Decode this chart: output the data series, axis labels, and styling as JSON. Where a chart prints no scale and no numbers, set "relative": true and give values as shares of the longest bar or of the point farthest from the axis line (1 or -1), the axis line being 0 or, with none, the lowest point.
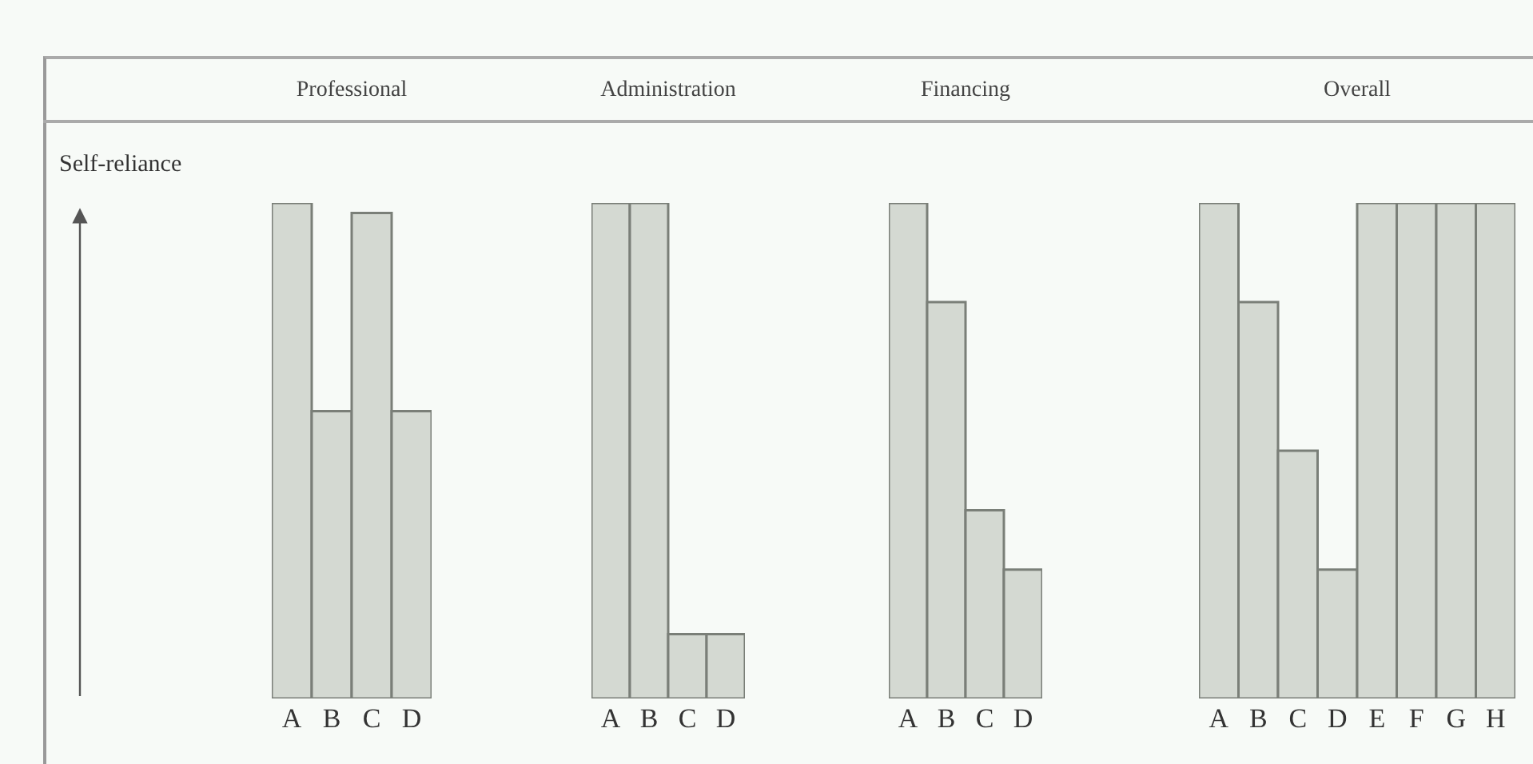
{
  "chart_data": [
    {
      "type": "bar",
      "title": "Professional",
      "ylabel": "Self-reliance",
      "relative": true,
      "categories": [
        "A",
        "B",
        "C",
        "D"
      ],
      "values": [
        1,
        0.58,
        0.98,
        0.58
      ],
      "color": "#d4d9d2"
    },
    {
      "type": "bar",
      "title": "Administration",
      "relative": true,
      "categories": [
        "A",
        "B",
        "C",
        "D"
      ],
      "values": [
        1,
        1,
        0.13,
        0.13
      ],
      "color": "#d4d9d2"
    },
    {
      "type": "bar",
      "title": "Financing",
      "relative": true,
      "categories": [
        "A",
        "B",
        "C",
        "D"
      ],
      "values": [
        1,
        0.8,
        0.38,
        0.26
      ],
      "color": "#d4d9d2"
    },
    {
      "type": "bar",
      "title": "Overall",
      "relative": true,
      "categories": [
        "A",
        "B",
        "C",
        "D",
        "E",
        "F",
        "G",
        "H"
      ],
      "values": [
        1,
        0.8,
        0.5,
        0.26,
        1,
        1,
        1,
        1
      ],
      "color": "#d4d9d2"
    }
  ]
}
